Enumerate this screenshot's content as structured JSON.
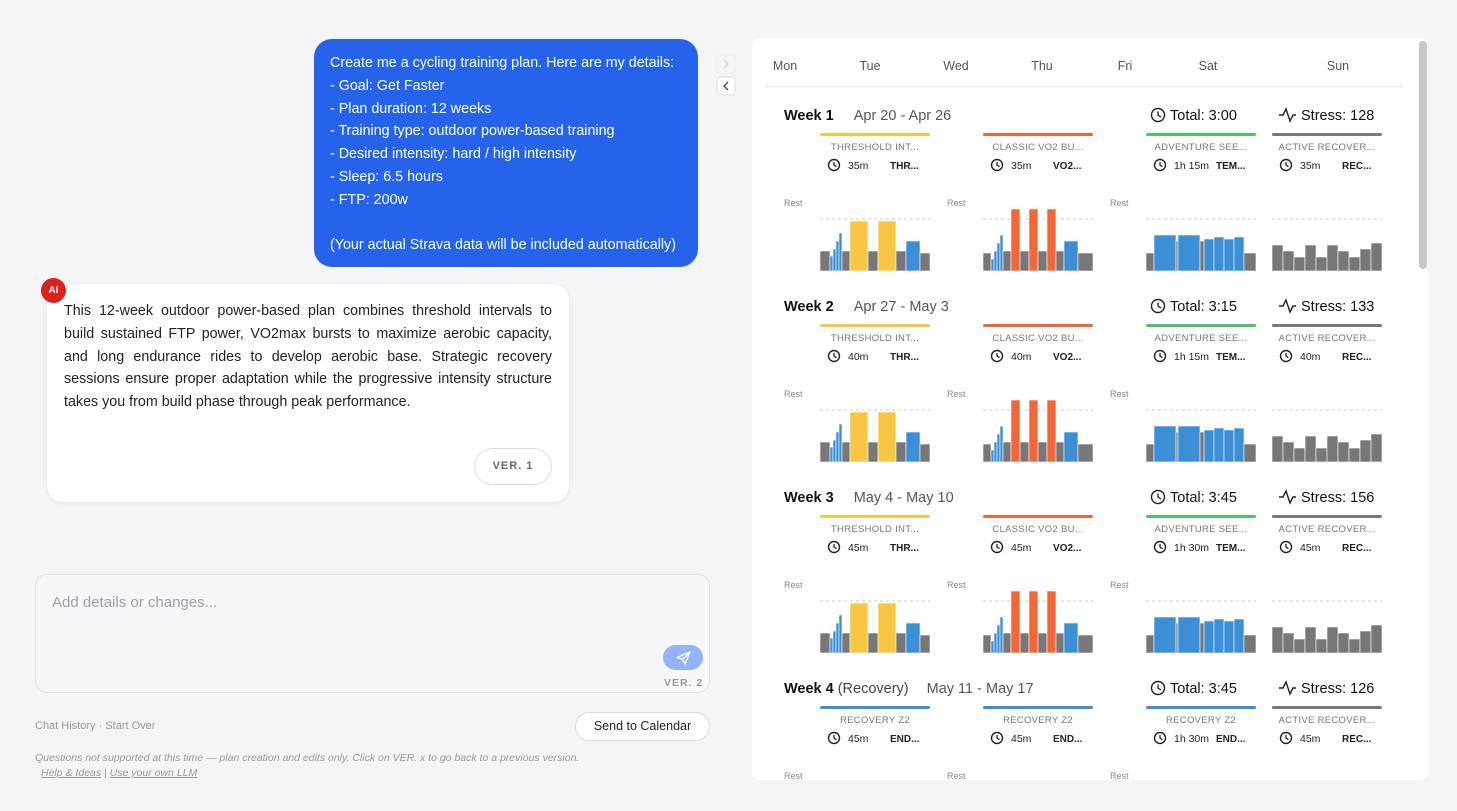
{
  "chat": {
    "user_lines": [
      "Create me a cycling training plan. Here are my details:",
      "- Goal: Get Faster",
      "- Plan duration: 12 weeks",
      "- Training type: outdoor power-based training",
      "- Desired intensity: hard / high intensity",
      "- Sleep: 6.5 hours",
      "- FTP: 200w"
    ],
    "user_note": "(Your actual Strava data will be included automatically)",
    "ai_badge": "AI",
    "ai_message": "This 12-week outdoor power-based plan combines threshold intervals to build sustained FTP power, VO2max bursts to maximize aerobic capacity, and long endurance rides to develop aerobic base. Strategic recovery sessions ensure proper adaptation while the progressive intensity structure takes you from build phase through peak performance.",
    "version_button": "VER. 1"
  },
  "composer": {
    "placeholder": "Add details or changes...",
    "version": "VER. 2"
  },
  "footer": {
    "chat_history": "Chat History",
    "separator": "·",
    "start_over": "Start Over",
    "send_button": "Send to Calendar",
    "notice": "Questions not supported at this time — plan creation and edits only. Click on VER. x to go back to a previous version.",
    "help": "Help & Ideas",
    "divider": "|",
    "own_llm": "Use your own LLM"
  },
  "calendar": {
    "days": [
      "Mon",
      "Tue",
      "Wed",
      "Thu",
      "Fri",
      "Sat",
      "Sun"
    ],
    "weeks": [
      {
        "label": "Week 1",
        "dates": "Apr 20 - Apr 26",
        "total": "Total: 3:00",
        "stress": "Stress: 128",
        "rest": [
          "Rest",
          "Rest",
          "Rest"
        ],
        "workouts": [
          {
            "title": "THRESHOLD INT...",
            "duration": "35m",
            "type": "THR...",
            "color": "#f7c744"
          },
          {
            "title": "CLASSIC VO2 BU...",
            "duration": "35m",
            "type": "VO2...",
            "color": "#f2673a"
          },
          {
            "title": "ADVENTURE SEE...",
            "duration": "1h 15m",
            "type": "TEM...",
            "color": "#4cc26b"
          },
          {
            "title": "ACTIVE RECOVER...",
            "duration": "35m",
            "type": "REC...",
            "color": "#7a7a7a"
          }
        ]
      },
      {
        "label": "Week 2",
        "dates": "Apr 27 - May 3",
        "total": "Total: 3:15",
        "stress": "Stress: 133",
        "rest": [
          "Rest",
          "Rest",
          "Rest"
        ],
        "workouts": [
          {
            "title": "THRESHOLD INT...",
            "duration": "40m",
            "type": "THR...",
            "color": "#f7c744"
          },
          {
            "title": "CLASSIC VO2 BU...",
            "duration": "40m",
            "type": "VO2...",
            "color": "#f2673a"
          },
          {
            "title": "ADVENTURE SEE...",
            "duration": "1h 15m",
            "type": "TEM...",
            "color": "#4cc26b"
          },
          {
            "title": "ACTIVE RECOVER...",
            "duration": "40m",
            "type": "REC...",
            "color": "#7a7a7a"
          }
        ]
      },
      {
        "label": "Week 3",
        "dates": "May 4 - May 10",
        "total": "Total: 3:45",
        "stress": "Stress: 156",
        "rest": [
          "Rest",
          "Rest",
          "Rest"
        ],
        "workouts": [
          {
            "title": "THRESHOLD INT...",
            "duration": "45m",
            "type": "THR...",
            "color": "#f7c744"
          },
          {
            "title": "CLASSIC VO2 BU...",
            "duration": "45m",
            "type": "VO2...",
            "color": "#f2673a"
          },
          {
            "title": "ADVENTURE SEE...",
            "duration": "1h 30m",
            "type": "TEM...",
            "color": "#4cc26b"
          },
          {
            "title": "ACTIVE RECOVER...",
            "duration": "45m",
            "type": "REC...",
            "color": "#7a7a7a"
          }
        ]
      },
      {
        "label": "Week 4",
        "note": "(Recovery)",
        "dates": "May 11 - May 17",
        "total": "Total: 3:45",
        "stress": "Stress: 126",
        "rest": [
          "Rest",
          "Rest",
          "Rest"
        ],
        "workouts": [
          {
            "title": "RECOVERY Z2",
            "duration": "45m",
            "type": "END...",
            "color": "#3b8fd6"
          },
          {
            "title": "RECOVERY Z2",
            "duration": "45m",
            "type": "END...",
            "color": "#3b8fd6"
          },
          {
            "title": "RECOVERY Z2",
            "duration": "1h 30m",
            "type": "END...",
            "color": "#3b8fd6"
          },
          {
            "title": "ACTIVE RECOVER...",
            "duration": "45m",
            "type": "REC...",
            "color": "#7a7a7a"
          }
        ]
      }
    ]
  }
}
